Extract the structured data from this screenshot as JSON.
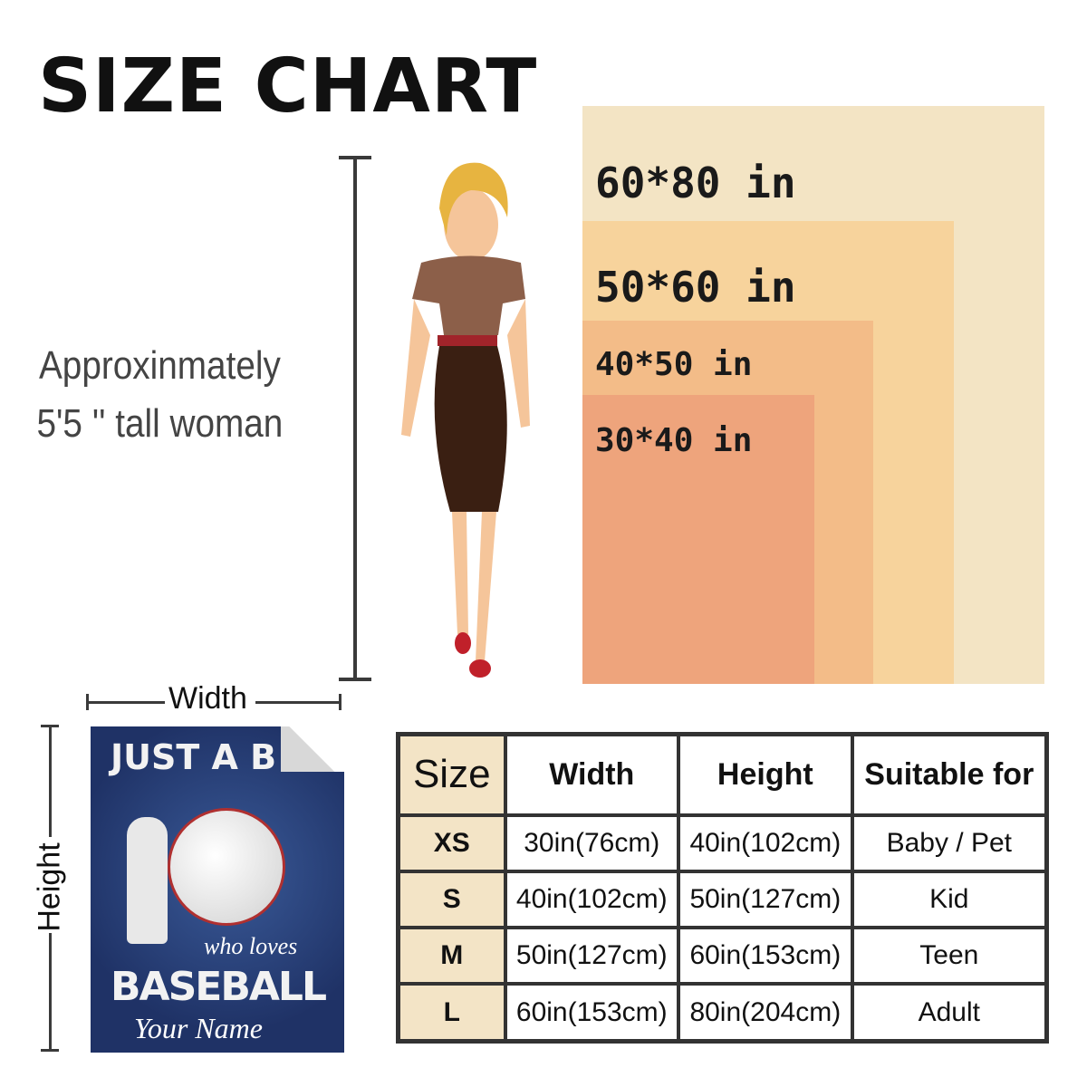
{
  "title": "SIZE CHART",
  "description": {
    "line1": "Approxinmately",
    "line2": "5'5 '' tall woman"
  },
  "sizes_visual": [
    {
      "label": "60*80 in",
      "color": "#f3e4c4"
    },
    {
      "label": "50*60 in",
      "color": "#f7d39c"
    },
    {
      "label": "40*50 in",
      "color": "#f3bc88"
    },
    {
      "label": "30*40 in",
      "color": "#eea47c"
    }
  ],
  "blanket": {
    "width_label": "Width",
    "height_label": "Height",
    "text_top": "JUST A B",
    "text_mid": "who loves",
    "text_main": "BASEBALL",
    "text_name": "Your Name"
  },
  "table": {
    "headers": [
      "Size",
      "Width",
      "Height",
      "Suitable for"
    ],
    "rows": [
      [
        "XS",
        "30in(76cm)",
        "40in(102cm)",
        "Baby / Pet"
      ],
      [
        "S",
        "40in(102cm)",
        "50in(127cm)",
        "Kid"
      ],
      [
        "M",
        "50in(127cm)",
        "60in(153cm)",
        "Teen"
      ],
      [
        "L",
        "60in(153cm)",
        "80in(204cm)",
        "Adult"
      ]
    ]
  }
}
